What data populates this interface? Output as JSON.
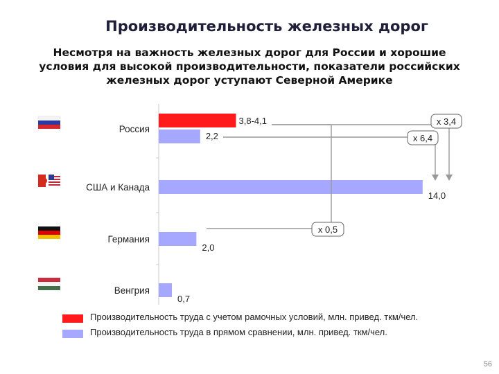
{
  "title": "Производительность железных дорог",
  "subtitle": "Несмотря на важность железных дорог для России и хорошие условия для высокой производительности, показатели российских железных дорог уступают Северной Америке",
  "page_number": "56",
  "colors": {
    "red": "#ff1b1b",
    "lavender": "#a6a8ff",
    "axis": "#c8c8c8",
    "arrow": "#999999"
  },
  "chart_data": {
    "type": "bar",
    "orientation": "horizontal",
    "categories": [
      "Россия",
      "США и Канада",
      "Германия",
      "Венгрия"
    ],
    "flags": [
      "russia-flag",
      "usa-canada-flag",
      "germany-flag",
      "hungary-flag"
    ],
    "series": [
      {
        "name": "Производительность труда с учетом рамочных условий, млн. привед. ткм/чел.",
        "color": "#ff1b1b",
        "values": [
          4.1,
          null,
          null,
          null
        ],
        "labels": [
          "3,8-4,1",
          "",
          "",
          ""
        ]
      },
      {
        "name": "Производительность труда в прямом сравнении, млн. привед. ткм/чел.",
        "color": "#a6a8ff",
        "values": [
          2.2,
          14.0,
          2.0,
          0.7
        ],
        "labels": [
          "2,2",
          "14,0",
          "2,0",
          "0,7"
        ]
      }
    ],
    "annotations": [
      {
        "text": "x 3,4",
        "from": "Россия (3,8-4,1)",
        "to": "США и Канада"
      },
      {
        "text": "x 6,4",
        "from": "Россия (2,2)",
        "to": "США и Канада"
      },
      {
        "text": "x 0,5",
        "from": "Россия (3,8-4,1)",
        "to": "Германия"
      }
    ]
  }
}
